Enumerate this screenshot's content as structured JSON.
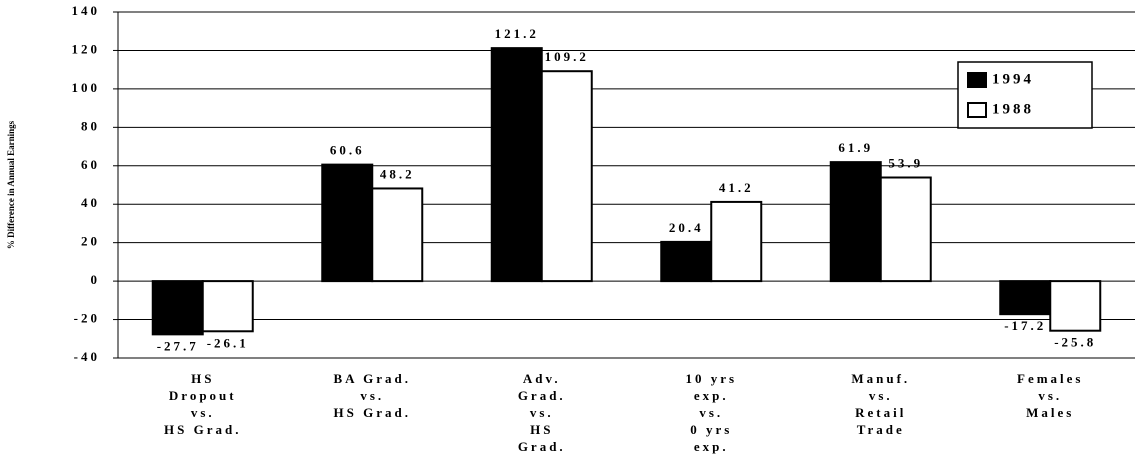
{
  "chart_data": {
    "type": "bar",
    "y_label": "% Difference in Annual Earnings",
    "categories": [
      [
        "HS",
        "Dropout",
        "vs.",
        "HS Grad."
      ],
      [
        "BA Grad.",
        "vs.",
        "HS Grad."
      ],
      [
        "Adv.",
        "Grad.",
        "vs.",
        "HS",
        "Grad."
      ],
      [
        "10 yrs",
        "exp.",
        "vs.",
        "0 yrs",
        "exp."
      ],
      [
        "Manuf.",
        "vs.",
        "Retail",
        "Trade"
      ],
      [
        "Females",
        "vs.",
        "Males"
      ]
    ],
    "series": [
      {
        "name": "1994",
        "color": "#000000",
        "values": [
          -27.7,
          60.6,
          121.2,
          20.4,
          61.9,
          -17.2
        ]
      },
      {
        "name": "1988",
        "color": "#ffffff",
        "values": [
          -26.1,
          48.2,
          109.2,
          41.2,
          53.9,
          -25.8
        ]
      }
    ],
    "ylim": [
      -40,
      140
    ],
    "yticks": [
      -40,
      -20,
      0,
      20,
      40,
      60,
      80,
      100,
      120,
      140
    ],
    "grid": true,
    "legend": "top-right"
  }
}
